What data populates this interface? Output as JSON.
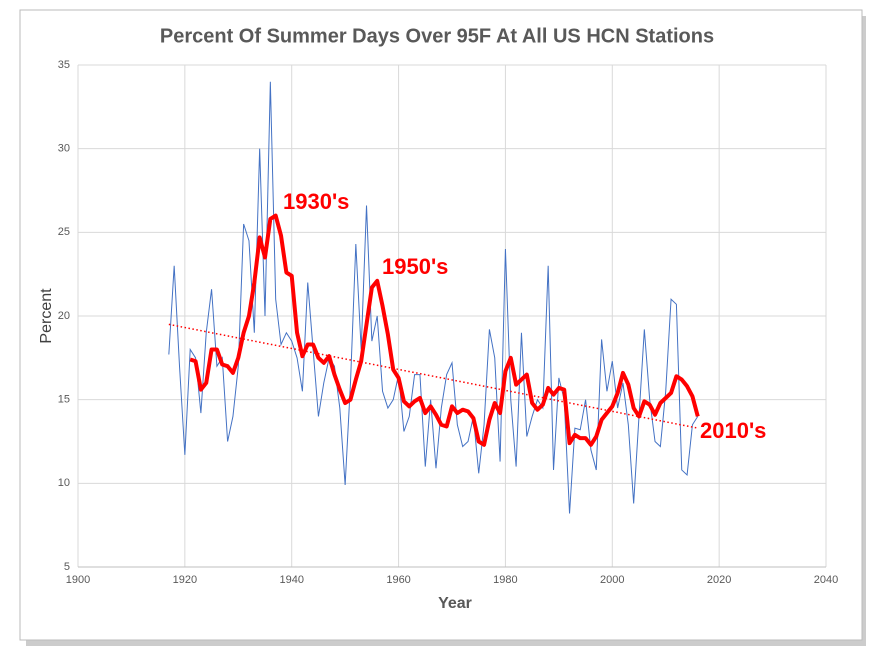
{
  "chart_data": {
    "type": "line",
    "title": "Percent Of Summer Days Over 95F At All US HCN Stations",
    "xlabel": "Year",
    "ylabel": "Percent",
    "xlim": [
      1900,
      2040
    ],
    "xticks": [
      1900,
      1920,
      1940,
      1960,
      1980,
      2000,
      2020,
      2040
    ],
    "ylim": [
      5,
      35
    ],
    "yticks": [
      5,
      10,
      15,
      20,
      25,
      30,
      35
    ],
    "grid": true,
    "series": [
      {
        "color": "#4472c4",
        "style": "solid",
        "x": [
          1917,
          1918,
          1919,
          1920,
          1921,
          1922,
          1923,
          1924,
          1925,
          1926,
          1927,
          1928,
          1929,
          1930,
          1931,
          1932,
          1933,
          1934,
          1935,
          1936,
          1937,
          1938,
          1939,
          1940,
          1941,
          1942,
          1943,
          1944,
          1945,
          1946,
          1947,
          1948,
          1949,
          1950,
          1951,
          1952,
          1953,
          1954,
          1955,
          1956,
          1957,
          1958,
          1959,
          1960,
          1961,
          1962,
          1963,
          1964,
          1965,
          1966,
          1967,
          1968,
          1969,
          1970,
          1971,
          1972,
          1973,
          1974,
          1975,
          1976,
          1977,
          1978,
          1979,
          1980,
          1981,
          1982,
          1983,
          1984,
          1985,
          1986,
          1987,
          1988,
          1989,
          1990,
          1991,
          1992,
          1993,
          1994,
          1995,
          1996,
          1997,
          1998,
          1999,
          2000,
          2001,
          2002,
          2003,
          2004,
          2005,
          2006,
          2007,
          2008,
          2009,
          2010,
          2011,
          2012,
          2013,
          2014,
          2015,
          2016
        ],
        "values": [
          17.7,
          23.0,
          17,
          11.7,
          18,
          17.5,
          14.2,
          19,
          21.6,
          17,
          17.5,
          12.5,
          14,
          17,
          25.5,
          24.5,
          19,
          30,
          20,
          34,
          21,
          18.3,
          19,
          18.5,
          17.5,
          15.5,
          22,
          18,
          14,
          16,
          17.5,
          17,
          14.5,
          9.9,
          16,
          24.3,
          18,
          26.6,
          18.5,
          20,
          15.5,
          14.5,
          15,
          16.5,
          13.1,
          14,
          16.5,
          16.5,
          11,
          15,
          10.9,
          14.5,
          16.5,
          17.2,
          13.5,
          12.2,
          12.5,
          14,
          10.6,
          13.5,
          19.2,
          17.5,
          11.3,
          24,
          15,
          11,
          19,
          12.8,
          14,
          15,
          14.5,
          23,
          10.8,
          16.3,
          15,
          8.2,
          13.3,
          13.2,
          15,
          12,
          10.8,
          18.6,
          15.5,
          17.3,
          14.5,
          16,
          13.5,
          8.8,
          14,
          19.2,
          15,
          12.5,
          12.2,
          15.5,
          21,
          20.7,
          10.8,
          10.5,
          13.5,
          14
        ]
      },
      {
        "color": "#ff0000",
        "style": "thick",
        "x": [
          1921,
          1922,
          1923,
          1924,
          1925,
          1926,
          1927,
          1928,
          1929,
          1930,
          1931,
          1932,
          1933,
          1934,
          1935,
          1936,
          1937,
          1938,
          1939,
          1940,
          1941,
          1942,
          1943,
          1944,
          1945,
          1946,
          1947,
          1948,
          1949,
          1950,
          1951,
          1952,
          1953,
          1954,
          1955,
          1956,
          1957,
          1958,
          1959,
          1960,
          1961,
          1962,
          1963,
          1964,
          1965,
          1966,
          1967,
          1968,
          1969,
          1970,
          1971,
          1972,
          1973,
          1974,
          1975,
          1976,
          1977,
          1978,
          1979,
          1980,
          1981,
          1982,
          1983,
          1984,
          1985,
          1986,
          1987,
          1988,
          1989,
          1990,
          1991,
          1992,
          1993,
          1994,
          1995,
          1996,
          1997,
          1998,
          1999,
          2000,
          2001,
          2002,
          2003,
          2004,
          2005,
          2006,
          2007,
          2008,
          2009,
          2010,
          2011,
          2012,
          2013,
          2014,
          2015,
          2016
        ],
        "values": [
          17.4,
          17.3,
          15.6,
          16,
          18,
          18,
          17.1,
          17,
          16.6,
          17.5,
          19,
          20,
          22,
          24.7,
          23.5,
          25.8,
          26,
          24.8,
          22.6,
          22.4,
          19,
          17.6,
          18.3,
          18.3,
          17.5,
          17.2,
          17.6,
          16.5,
          15.6,
          14.8,
          15,
          16.2,
          17.3,
          19.5,
          21.7,
          22.1,
          20.6,
          18.9,
          16.8,
          16.3,
          14.9,
          14.6,
          14.9,
          15.1,
          14.2,
          14.6,
          14.1,
          13.5,
          13.4,
          14.6,
          14.2,
          14.4,
          14.3,
          13.9,
          12.5,
          12.3,
          13.8,
          14.8,
          14.2,
          16.7,
          17.5,
          15.9,
          16.2,
          16.5,
          14.8,
          14.4,
          14.7,
          15.7,
          15.3,
          15.7,
          15.6,
          12.4,
          12.9,
          12.7,
          12.7,
          12.3,
          12.8,
          13.8,
          14.2,
          14.6,
          15.4,
          16.6,
          15.9,
          14.5,
          14,
          14.9,
          14.7,
          14.1,
          14.8,
          15.1,
          15.4,
          16.4,
          16.2,
          15.8,
          15.2,
          14
        ]
      },
      {
        "color": "#ff0000",
        "style": "dotted",
        "x": [
          1917,
          2016
        ],
        "values": [
          19.5,
          13.3
        ]
      }
    ],
    "annotations": [
      {
        "text": "1930's"
      },
      {
        "text": "1950's"
      },
      {
        "text": "2010's"
      }
    ]
  }
}
